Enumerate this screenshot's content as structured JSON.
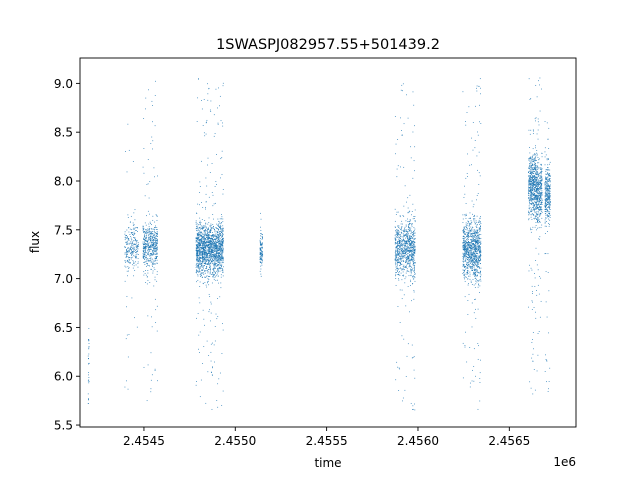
{
  "chart_data": {
    "type": "scatter",
    "title": "1SWASPJ082957.55+501439.2",
    "xlabel": "time",
    "ylabel": "flux",
    "x_offset_label": "1e6",
    "xlim": [
      2.45415,
      2.456865
    ],
    "ylim": [
      5.48,
      9.26
    ],
    "x_ticks": [
      2.4545,
      2.455,
      2.4555,
      2.456,
      2.4565
    ],
    "x_tick_labels": [
      "2.4545",
      "2.4550",
      "2.4555",
      "2.4560",
      "2.4565"
    ],
    "y_ticks": [
      5.5,
      6.0,
      6.5,
      7.0,
      7.5,
      8.0,
      8.5,
      9.0
    ],
    "y_tick_labels": [
      "5.5",
      "6.0",
      "6.5",
      "7.0",
      "7.5",
      "8.0",
      "8.5",
      "9.0"
    ],
    "grid": false,
    "marker_color": "#1f77b4",
    "clusters": [
      {
        "x_start": 2.454195,
        "x_end": 2.4542,
        "center": 6.1,
        "spread": 0.28,
        "min": 5.72,
        "max": 6.65,
        "count": 30
      },
      {
        "x_start": 2.454395,
        "x_end": 2.45447,
        "center": 7.32,
        "spread": 0.12,
        "min": 5.62,
        "max": 8.8,
        "count": 260
      },
      {
        "x_start": 2.454495,
        "x_end": 2.454575,
        "center": 7.33,
        "spread": 0.13,
        "min": 5.68,
        "max": 9.07,
        "count": 520
      },
      {
        "x_start": 2.454785,
        "x_end": 2.454935,
        "center": 7.3,
        "spread": 0.13,
        "min": 5.62,
        "max": 9.05,
        "count": 1700
      },
      {
        "x_start": 2.455135,
        "x_end": 2.45515,
        "center": 7.3,
        "spread": 0.09,
        "min": 6.93,
        "max": 7.72,
        "count": 110
      },
      {
        "x_start": 2.455875,
        "x_end": 2.455945,
        "center": 7.32,
        "spread": 0.14,
        "min": 5.68,
        "max": 9.02,
        "count": 520
      },
      {
        "x_start": 2.455945,
        "x_end": 2.455985,
        "center": 7.3,
        "spread": 0.15,
        "min": 5.64,
        "max": 9.0,
        "count": 380
      },
      {
        "x_start": 2.456245,
        "x_end": 2.456305,
        "center": 7.3,
        "spread": 0.14,
        "min": 5.68,
        "max": 8.98,
        "count": 560
      },
      {
        "x_start": 2.456305,
        "x_end": 2.456345,
        "center": 7.28,
        "spread": 0.17,
        "min": 5.62,
        "max": 9.08,
        "count": 460
      },
      {
        "x_start": 2.456605,
        "x_end": 2.456645,
        "center": 7.95,
        "spread": 0.16,
        "min": 5.78,
        "max": 9.05,
        "count": 520
      },
      {
        "x_start": 2.456645,
        "x_end": 2.45668,
        "center": 7.9,
        "spread": 0.16,
        "min": 5.72,
        "max": 9.08,
        "count": 420
      },
      {
        "x_start": 2.456695,
        "x_end": 2.456725,
        "center": 7.88,
        "spread": 0.15,
        "min": 5.78,
        "max": 8.95,
        "count": 330
      }
    ]
  }
}
